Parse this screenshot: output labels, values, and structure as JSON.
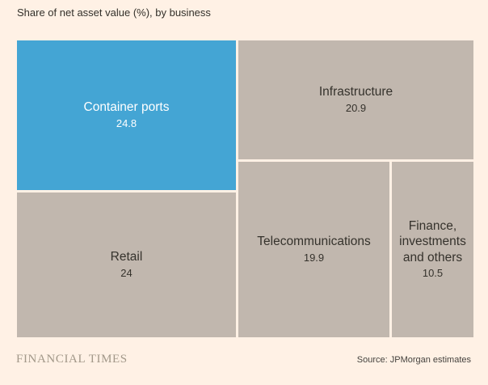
{
  "header": {
    "title": "Share of net asset value (%), by business"
  },
  "chart_data": {
    "type": "treemap",
    "title": "Share of net asset value (%), by business",
    "legend": "none",
    "layout_hint": "single-level treemap; highlighted tile top-left, others neutral; thin background-colored gutters between tiles",
    "tiles": [
      {
        "name": "Container ports",
        "value": 24.8,
        "value_label": "24.8",
        "color": "#44a5d4",
        "text_color": "#ffffff",
        "position": "top-left"
      },
      {
        "name": "Infrastructure",
        "value": 20.9,
        "value_label": "20.9",
        "color": "#c1b7ae",
        "text_color": "#35322c",
        "position": "top-right"
      },
      {
        "name": "Retail",
        "value": 24,
        "value_label": "24",
        "color": "#c1b7ae",
        "text_color": "#35322c",
        "position": "bottom-left"
      },
      {
        "name": "Telecommunications",
        "value": 19.9,
        "value_label": "19.9",
        "color": "#c1b7ae",
        "text_color": "#35322c",
        "position": "bottom-middle"
      },
      {
        "name": "Finance, investments and others",
        "value": 10.5,
        "value_label": "10.5",
        "color": "#c1b7ae",
        "text_color": "#35322c",
        "position": "bottom-right"
      }
    ]
  },
  "footer": {
    "branding": "FINANCIAL TIMES",
    "source": "Source: JPMorgan estimates"
  },
  "colors": {
    "background": "#fff1e5",
    "highlight_tile": "#44a5d4",
    "neutral_tile": "#c1b7ae",
    "gutter": "#fff1e5",
    "title_text": "#33302a",
    "brand_text": "#a29889",
    "source_text": "#45423e"
  }
}
